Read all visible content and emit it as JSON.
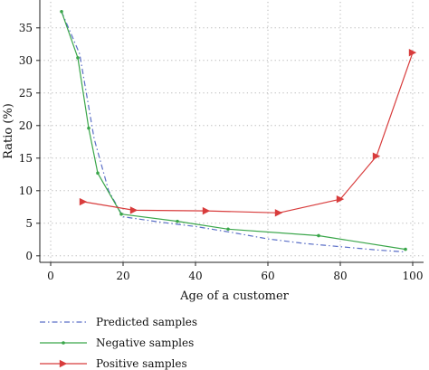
{
  "chart_data": {
    "type": "line",
    "title": "",
    "xlabel": "Age of a customer",
    "ylabel": "Ratio (%)",
    "xlim": [
      -3,
      103
    ],
    "ylim": [
      -1,
      39
    ],
    "xticks": [
      0,
      20,
      40,
      60,
      80,
      100
    ],
    "yticks": [
      0,
      5,
      10,
      15,
      20,
      25,
      30,
      35
    ],
    "xtick_labels": [
      "0",
      "20",
      "40",
      "60",
      "80",
      "100"
    ],
    "ytick_labels": [
      "0",
      "5",
      "10",
      "15",
      "20",
      "25",
      "30",
      "35"
    ],
    "grid": true,
    "legend_position": "bottom-left, below plot",
    "series": [
      {
        "name": "Predicted samples",
        "color": "#5b6fc7",
        "style": "dashdot",
        "marker": "none",
        "x": [
          3,
          8,
          12,
          16,
          20,
          30,
          40,
          50,
          60,
          70,
          80,
          90,
          98
        ],
        "y": [
          37.5,
          31,
          18,
          10,
          6.0,
          5.2,
          4.5,
          3.6,
          2.6,
          1.9,
          1.4,
          0.9,
          0.6
        ]
      },
      {
        "name": "Negative samples",
        "color": "#3aa64a",
        "style": "solid",
        "marker": "dot",
        "x": [
          3,
          7.5,
          10.5,
          13,
          19.5,
          35,
          49,
          74,
          98
        ],
        "y": [
          37.5,
          30.4,
          19.6,
          12.7,
          6.4,
          5.3,
          4.1,
          3.1,
          1.0
        ]
      },
      {
        "name": "Positive samples",
        "color": "#d83c3c",
        "style": "solid",
        "marker": "triangle-right",
        "x": [
          9,
          23,
          43,
          63,
          80,
          90,
          100
        ],
        "y": [
          8.3,
          7.0,
          6.9,
          6.6,
          8.7,
          15.3,
          31.2
        ]
      }
    ]
  }
}
